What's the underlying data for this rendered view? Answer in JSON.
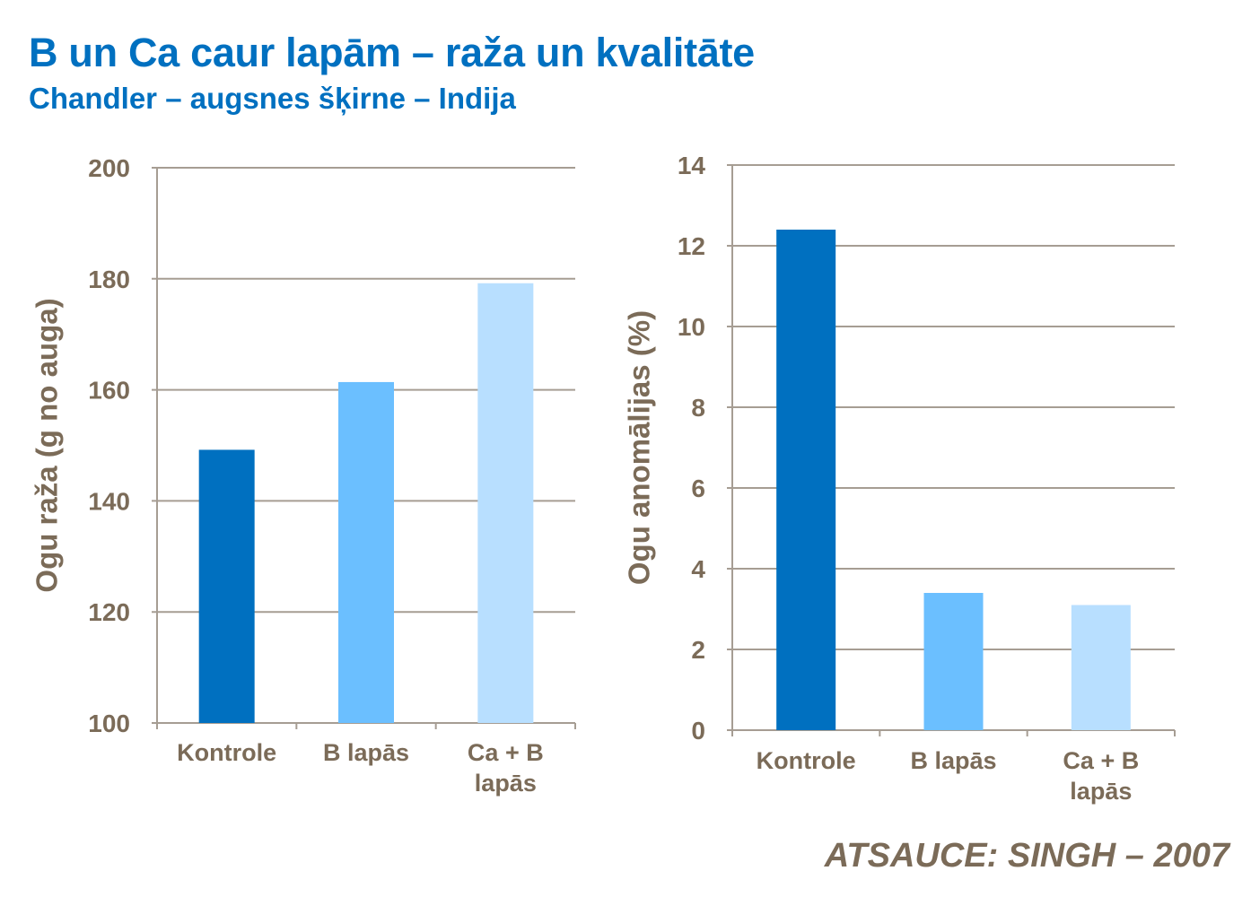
{
  "title": "B un Ca caur lapām – raža un kvalitāte",
  "subtitle": "Chandler – augsnes šķirne – Indija",
  "source": "ATSAUCE:  SINGH – 2007",
  "colors": {
    "title": "#0070C0",
    "axis_text": "#7B6B58",
    "grid": "#A69D93",
    "bars": [
      "#0070C0",
      "#6BBFFF",
      "#B8DFFF"
    ]
  },
  "chart_data": [
    {
      "type": "bar",
      "categories": [
        [
          "Kontrole"
        ],
        [
          "B lapās"
        ],
        [
          "Ca + B",
          "lapās"
        ]
      ],
      "values": [
        149.2,
        161.4,
        179.2
      ],
      "ylabel": "Ogu raža (g no auga)",
      "xlabel": "",
      "ylim": [
        100,
        200
      ],
      "yticks": [
        100,
        120,
        140,
        160,
        180,
        200
      ],
      "grid": true
    },
    {
      "type": "bar",
      "categories": [
        [
          "Kontrole"
        ],
        [
          "B lapās"
        ],
        [
          "Ca + B",
          "lapās"
        ]
      ],
      "values": [
        12.4,
        3.4,
        3.1
      ],
      "ylabel": "Ogu anomālijas (%)",
      "xlabel": "",
      "ylim": [
        0,
        14
      ],
      "yticks": [
        0,
        2,
        4,
        6,
        8,
        10,
        12,
        14
      ],
      "grid": true
    }
  ]
}
